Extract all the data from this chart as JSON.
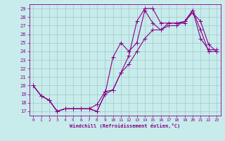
{
  "xlabel": "Windchill (Refroidissement éolien,°C)",
  "xlim": [
    -0.5,
    23.5
  ],
  "ylim": [
    16.5,
    29.5
  ],
  "xticks": [
    0,
    1,
    2,
    3,
    4,
    5,
    6,
    7,
    8,
    9,
    10,
    11,
    12,
    13,
    14,
    15,
    16,
    17,
    18,
    19,
    20,
    21,
    22,
    23
  ],
  "yticks": [
    17,
    18,
    19,
    20,
    21,
    22,
    23,
    24,
    25,
    26,
    27,
    28,
    29
  ],
  "bg_color": "#c8ecec",
  "grid_color": "#a0c8c8",
  "line_color": "#880088",
  "line1_x": [
    0,
    1,
    2,
    3,
    4,
    5,
    6,
    7,
    8,
    9,
    10,
    11,
    12,
    13,
    14,
    15,
    16,
    17,
    18,
    19,
    20,
    21,
    22,
    23
  ],
  "line1_y": [
    20,
    18.8,
    18.3,
    17.0,
    17.3,
    17.3,
    17.3,
    17.3,
    17.8,
    19.3,
    19.5,
    21.5,
    23.5,
    27.5,
    29.0,
    29.0,
    27.3,
    27.3,
    27.3,
    27.3,
    28.8,
    26.5,
    24.0,
    24.0
  ],
  "line2_x": [
    0,
    1,
    2,
    3,
    4,
    5,
    6,
    7,
    8,
    9,
    10,
    11,
    12,
    13,
    14,
    15,
    16,
    17,
    18,
    19,
    20,
    21,
    22,
    23
  ],
  "line2_y": [
    20,
    18.8,
    18.3,
    17.0,
    17.3,
    17.3,
    17.3,
    17.3,
    17.0,
    19.0,
    23.3,
    25.0,
    24.0,
    25.0,
    28.8,
    27.3,
    26.5,
    27.3,
    27.3,
    27.5,
    28.8,
    25.5,
    24.2,
    24.2
  ],
  "line3_x": [
    0,
    1,
    2,
    3,
    4,
    5,
    6,
    7,
    8,
    9,
    10,
    11,
    12,
    13,
    14,
    15,
    16,
    17,
    18,
    19,
    20,
    21,
    22,
    23
  ],
  "line3_y": [
    20,
    18.8,
    18.3,
    17.0,
    17.3,
    17.3,
    17.3,
    17.3,
    17.0,
    19.0,
    19.5,
    21.5,
    22.5,
    24.0,
    25.5,
    26.5,
    26.5,
    27.0,
    27.0,
    27.5,
    28.5,
    27.5,
    24.8,
    24.0
  ]
}
